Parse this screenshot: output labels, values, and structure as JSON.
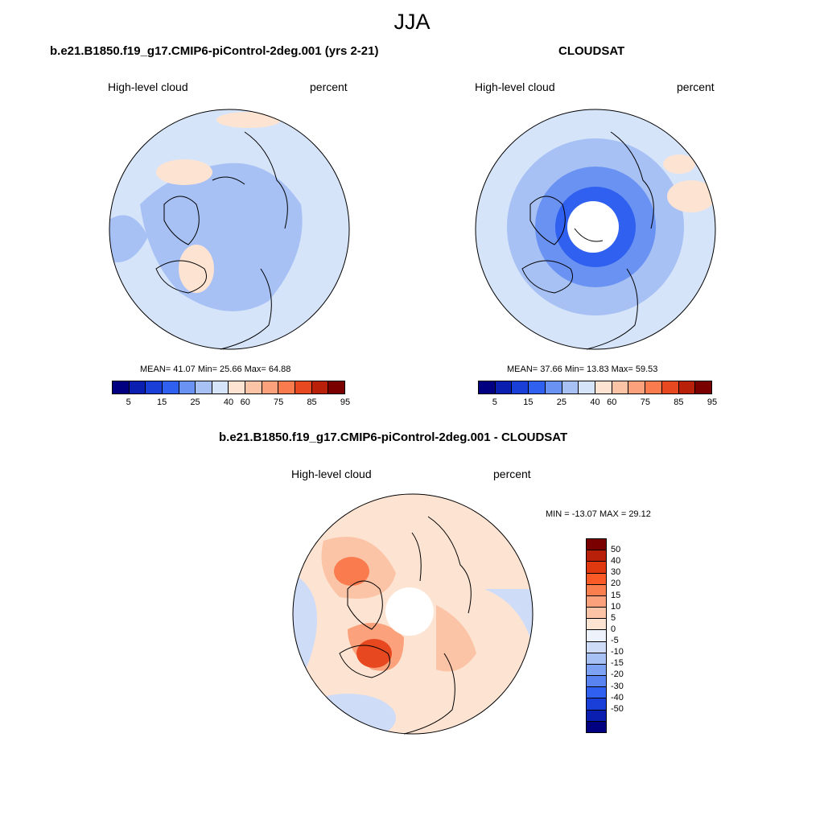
{
  "figure": {
    "season": "JJA"
  },
  "panel_model": {
    "title": "b.e21.B1850.f19_g17.CMIP6-piControl-2deg.001 (yrs 2-21)",
    "left_label": "High-level cloud",
    "right_label": "percent",
    "stats": "MEAN=  41.07  Min=  25.66  Max=  64.88"
  },
  "panel_obs": {
    "title": "CLOUDSAT",
    "left_label": "High-level cloud",
    "right_label": "percent",
    "stats": "MEAN=  37.66  Min=  13.83  Max=  59.53"
  },
  "panel_diff": {
    "title": "b.e21.B1850.f19_g17.CMIP6-piControl-2deg.001 - CLOUDSAT",
    "left_label": "High-level cloud",
    "right_label": "percent",
    "stats": "MIN = -13.07 MAX =  29.12"
  },
  "colorbar_main": {
    "colors": [
      "#000080",
      "#0a1fb0",
      "#1a3fd8",
      "#2f60f0",
      "#6a92f2",
      "#a7c1f5",
      "#d6e4fa",
      "#fde3d2",
      "#fcc4a6",
      "#fba27c",
      "#f97b4e",
      "#e8481f",
      "#b8200a",
      "#7a0000"
    ],
    "ticks": [
      "5",
      "15",
      "25",
      "40",
      "60",
      "75",
      "85",
      "95"
    ]
  },
  "colorbar_diff": {
    "colors": [
      "#7a0000",
      "#b8200a",
      "#e0380f",
      "#fa5a25",
      "#fb7e4e",
      "#fba27c",
      "#fcc4a6",
      "#fde3d2",
      "#eef3fb",
      "#cfdcf8",
      "#a7c1f5",
      "#7ea2f3",
      "#5a83f2",
      "#2f60f0",
      "#1a3fd8",
      "#0a1fb0",
      "#000080"
    ],
    "ticks": [
      "50",
      "40",
      "30",
      "20",
      "15",
      "10",
      "5",
      "0",
      "-5",
      "-10",
      "-15",
      "-20",
      "-30",
      "-40",
      "-50"
    ]
  },
  "map_colors": {
    "pale_blue": "#d6e4fa",
    "light_blue": "#a7c1f5",
    "mid_blue": "#6a92f2",
    "blue": "#2f60f0",
    "pale_orange": "#fde3d2",
    "light_orange": "#fcc4a6",
    "orange": "#f97b4e",
    "red_orange": "#e8481f"
  }
}
